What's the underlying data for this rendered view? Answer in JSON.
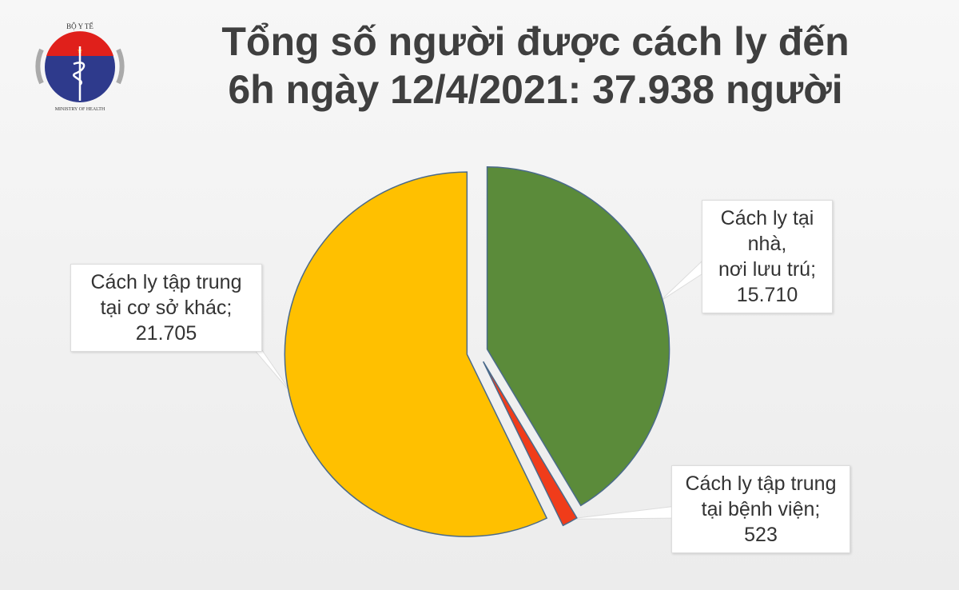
{
  "logo": {
    "text_top": "BỘ Y TẾ",
    "text_bottom": "MINISTRY OF HEALTH"
  },
  "title_line1": "Tổng số người được cách ly đến",
  "title_line2": "6h ngày 12/4/2021: 37.938 người",
  "chart_data": {
    "type": "pie",
    "title": "Tổng số người được cách ly đến 6h ngày 12/4/2021: 37.938 người",
    "total": 37938,
    "slices": [
      {
        "label_line1": "Cách ly tại nhà,",
        "label_line2": "nơi lưu trú;",
        "value_text": "15.710",
        "value": 15710,
        "color": "#5b8b3a"
      },
      {
        "label_line1": "Cách ly tập trung",
        "label_line2": "tại bệnh viện;",
        "value_text": "523",
        "value": 523,
        "color": "#f03c1a"
      },
      {
        "label_line1": "Cách ly tập trung",
        "label_line2": "tại cơ sở khác;",
        "value_text": "21.705",
        "value": 21705,
        "color": "#ffc000"
      }
    ],
    "start_angle": "12 o'clock, clockwise",
    "exploded": true,
    "legend": "none (data callouts)"
  }
}
